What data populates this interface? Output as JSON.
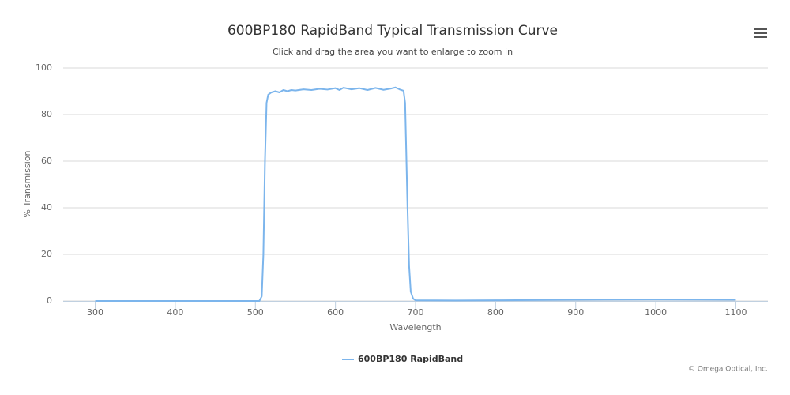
{
  "chart_data": {
    "type": "line",
    "title": "600BP180 RapidBand Typical Transmission Curve",
    "subtitle": "Click and drag the area you want to enlarge to zoom in",
    "x_label": "Wavelength",
    "y_label": "% Transmission",
    "credits": "© Omega Optical, Inc.",
    "x": [
      300,
      400,
      500,
      505,
      508,
      510,
      512,
      514,
      516,
      520,
      525,
      530,
      535,
      540,
      545,
      550,
      560,
      570,
      580,
      590,
      600,
      605,
      610,
      620,
      630,
      640,
      650,
      660,
      670,
      675,
      680,
      685,
      687,
      688,
      690,
      692,
      694,
      697,
      700,
      750,
      800,
      900,
      1000,
      1100
    ],
    "series": [
      {
        "name": "600BP180 RapidBand",
        "color": "#7cb5ec",
        "values": [
          0,
          0,
          0,
          0,
          2,
          20,
          60,
          85,
          88.5,
          89.5,
          90,
          89.5,
          90.5,
          90,
          90.5,
          90.3,
          90.8,
          90.5,
          91,
          90.7,
          91.3,
          90.5,
          91.5,
          90.8,
          91.3,
          90.5,
          91.4,
          90.6,
          91.2,
          91.6,
          90.8,
          90.2,
          85,
          70,
          40,
          15,
          4,
          1,
          0.3,
          0.2,
          0.3,
          0.5,
          0.6,
          0.5
        ]
      }
    ],
    "xlim": [
      260,
      1140
    ],
    "xticks": [
      300,
      400,
      500,
      600,
      700,
      800,
      900,
      1000,
      1100
    ],
    "ylim": [
      0,
      100
    ],
    "yticks": [
      0,
      20,
      40,
      60,
      80,
      100
    ],
    "grid": true
  }
}
